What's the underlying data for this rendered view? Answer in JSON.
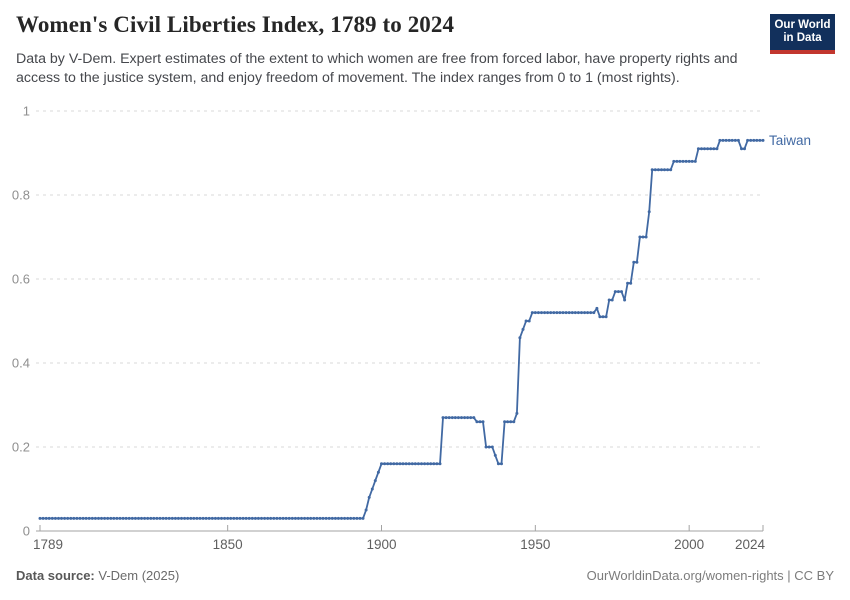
{
  "header": {
    "title": "Women's Civil Liberties Index, 1789 to 2024",
    "subtitle": "Data by V-Dem. Expert estimates of the extent to which women are free from forced labor, have property rights and access to the justice system, and enjoy freedom of movement. The index ranges from 0 to 1 (most rights).",
    "logo": {
      "line1": "Our World",
      "line2": "in Data",
      "bg_color": "#12305c",
      "accent_color": "#c2362e"
    }
  },
  "footer": {
    "source_label": "Data source:",
    "source_value": " V-Dem (2025)",
    "credit": "OurWorldinData.org/women-rights | CC BY"
  },
  "chart_data": {
    "type": "line",
    "title": "Women's Civil Liberties Index, 1789 to 2024",
    "xlabel": "",
    "ylabel": "",
    "xlim": [
      1789,
      2024
    ],
    "ylim": [
      0,
      1
    ],
    "grid": true,
    "legend_position": "end-of-line",
    "x_ticks": [
      1789,
      1850,
      1900,
      1950,
      2000,
      2024
    ],
    "y_ticks": [
      {
        "v": 1,
        "label": "1"
      },
      {
        "v": 0.8,
        "label": "0.8"
      },
      {
        "v": 0.6,
        "label": "0.6"
      },
      {
        "v": 0.4,
        "label": "0.4"
      },
      {
        "v": 0.2,
        "label": "0.2"
      },
      {
        "v": 0,
        "label": "0"
      }
    ],
    "series": [
      {
        "name": "Taiwan",
        "color": "#4169a3",
        "marker": "circle",
        "breakpoints": [
          [
            1789,
            0.03
          ],
          [
            1894,
            0.03
          ],
          [
            1895,
            0.05
          ],
          [
            1896,
            0.08
          ],
          [
            1897,
            0.1
          ],
          [
            1898,
            0.12
          ],
          [
            1899,
            0.14
          ],
          [
            1900,
            0.16
          ],
          [
            1919,
            0.16
          ],
          [
            1920,
            0.27
          ],
          [
            1930,
            0.27
          ],
          [
            1931,
            0.26
          ],
          [
            1933,
            0.26
          ],
          [
            1934,
            0.2
          ],
          [
            1936,
            0.2
          ],
          [
            1937,
            0.18
          ],
          [
            1938,
            0.16
          ],
          [
            1939,
            0.16
          ],
          [
            1940,
            0.26
          ],
          [
            1943,
            0.26
          ],
          [
            1944,
            0.28
          ],
          [
            1945,
            0.46
          ],
          [
            1946,
            0.48
          ],
          [
            1947,
            0.5
          ],
          [
            1948,
            0.5
          ],
          [
            1949,
            0.52
          ],
          [
            1969,
            0.52
          ],
          [
            1970,
            0.53
          ],
          [
            1971,
            0.51
          ],
          [
            1973,
            0.51
          ],
          [
            1974,
            0.55
          ],
          [
            1975,
            0.55
          ],
          [
            1976,
            0.57
          ],
          [
            1978,
            0.57
          ],
          [
            1979,
            0.55
          ],
          [
            1980,
            0.59
          ],
          [
            1981,
            0.59
          ],
          [
            1982,
            0.64
          ],
          [
            1983,
            0.64
          ],
          [
            1984,
            0.7
          ],
          [
            1986,
            0.7
          ],
          [
            1987,
            0.76
          ],
          [
            1988,
            0.86
          ],
          [
            1994,
            0.86
          ],
          [
            1995,
            0.88
          ],
          [
            2002,
            0.88
          ],
          [
            2003,
            0.91
          ],
          [
            2009,
            0.91
          ],
          [
            2010,
            0.93
          ],
          [
            2016,
            0.93
          ],
          [
            2017,
            0.91
          ],
          [
            2018,
            0.91
          ],
          [
            2019,
            0.93
          ],
          [
            2024,
            0.93
          ]
        ]
      }
    ]
  }
}
